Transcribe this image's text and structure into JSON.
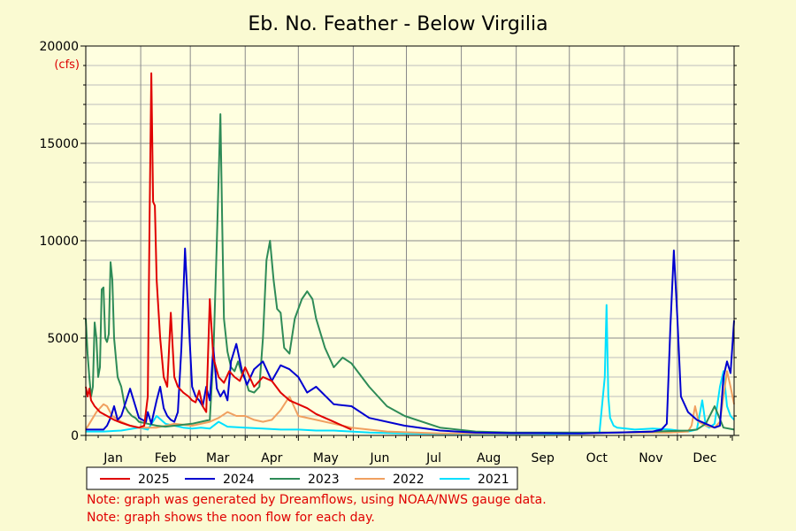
{
  "chart_data": {
    "type": "line",
    "title": "Eb. No. Feather - Below Virgilia",
    "ylabel": "(cfs)",
    "ylim": [
      0,
      20000
    ],
    "yticks": [
      0,
      5000,
      10000,
      15000,
      20000
    ],
    "xlim": [
      0,
      366
    ],
    "months": [
      "Jan",
      "Feb",
      "Mar",
      "Apr",
      "May",
      "Jun",
      "Jul",
      "Aug",
      "Sep",
      "Oct",
      "Nov",
      "Dec"
    ],
    "grid": true,
    "legend_position": "bottom",
    "series": [
      {
        "name": "2025",
        "color": "#e00000",
        "x": [
          0,
          1,
          2,
          3,
          5,
          8,
          12,
          16,
          20,
          25,
          30,
          33,
          35,
          36,
          37,
          38,
          39,
          40,
          42,
          44,
          46,
          48,
          50,
          52,
          55,
          58,
          60,
          62,
          64,
          66,
          68,
          70,
          72,
          75,
          78,
          81,
          84,
          87,
          90,
          95,
          100,
          105,
          110,
          115,
          120,
          125,
          130,
          135,
          140,
          145,
          150
        ],
        "y": [
          2500,
          2000,
          2400,
          1800,
          1500,
          1200,
          1000,
          800,
          650,
          500,
          400,
          500,
          2000,
          11000,
          18600,
          12000,
          11800,
          8000,
          5000,
          3000,
          2500,
          6300,
          3000,
          2500,
          2200,
          2000,
          1800,
          1700,
          2300,
          1500,
          1200,
          7000,
          4000,
          3000,
          2700,
          3300,
          3000,
          2800,
          3500,
          2500,
          3000,
          2800,
          2200,
          1800,
          1600,
          1400,
          1100,
          900,
          700,
          500,
          300
        ]
      },
      {
        "name": "2024",
        "color": "#0000d0",
        "x": [
          0,
          5,
          10,
          12,
          14,
          16,
          18,
          20,
          25,
          30,
          32,
          34,
          35,
          37,
          40,
          42,
          44,
          46,
          48,
          50,
          52,
          54,
          56,
          58,
          60,
          62,
          64,
          66,
          68,
          70,
          72,
          74,
          76,
          78,
          80,
          82,
          85,
          88,
          91,
          95,
          100,
          105,
          110,
          115,
          120,
          125,
          130,
          140,
          150,
          160,
          180,
          200,
          220,
          240,
          260,
          280,
          300,
          320,
          325,
          328,
          330,
          332,
          334,
          336,
          340,
          345,
          350,
          355,
          358,
          360,
          362,
          364,
          366
        ],
        "y": [
          300,
          300,
          300,
          500,
          900,
          1500,
          800,
          1000,
          2400,
          900,
          800,
          700,
          1200,
          600,
          1800,
          2500,
          1400,
          1000,
          800,
          700,
          1200,
          4500,
          9600,
          6000,
          2500,
          2000,
          1800,
          1500,
          2500,
          1800,
          4500,
          2400,
          2000,
          2300,
          1800,
          3800,
          4700,
          3400,
          2600,
          3400,
          3800,
          2800,
          3600,
          3400,
          3000,
          2200,
          2500,
          1600,
          1500,
          900,
          500,
          250,
          150,
          120,
          120,
          100,
          150,
          200,
          300,
          600,
          5500,
          9500,
          6000,
          2000,
          1200,
          800,
          600,
          400,
          500,
          3000,
          3800,
          3200,
          5900
        ]
      },
      {
        "name": "2023",
        "color": "#2e8b57",
        "x": [
          0,
          1,
          2,
          3,
          4,
          5,
          6,
          7,
          8,
          9,
          10,
          11,
          12,
          13,
          14,
          15,
          16,
          18,
          20,
          22,
          24,
          26,
          28,
          30,
          35,
          40,
          45,
          50,
          60,
          70,
          72,
          74,
          76,
          77,
          78,
          80,
          82,
          84,
          86,
          88,
          90,
          92,
          95,
          98,
          100,
          102,
          104,
          106,
          108,
          110,
          112,
          115,
          118,
          120,
          122,
          125,
          128,
          130,
          135,
          140,
          145,
          150,
          160,
          170,
          180,
          200,
          220,
          240,
          260,
          280,
          300,
          320,
          340,
          345,
          350,
          355,
          360,
          366
        ],
        "y": [
          6000,
          4200,
          3000,
          2000,
          2500,
          5800,
          5000,
          3000,
          3500,
          7500,
          7600,
          5000,
          4800,
          5200,
          8900,
          8000,
          5000,
          3000,
          2500,
          1500,
          1200,
          1000,
          900,
          700,
          600,
          500,
          450,
          500,
          600,
          800,
          4000,
          10000,
          16500,
          11000,
          6000,
          4300,
          3500,
          3300,
          3800,
          3200,
          2900,
          2300,
          2200,
          2500,
          5000,
          9000,
          10000,
          8000,
          6500,
          6300,
          4500,
          4200,
          6000,
          6500,
          7000,
          7400,
          7000,
          6000,
          4500,
          3500,
          4000,
          3700,
          2500,
          1500,
          1000,
          400,
          200,
          150,
          150,
          150,
          150,
          200,
          250,
          300,
          600,
          1500,
          400,
          300
        ]
      },
      {
        "name": "2022",
        "color": "#f0a060",
        "x": [
          0,
          2,
          4,
          6,
          8,
          10,
          12,
          15,
          20,
          25,
          30,
          40,
          50,
          60,
          70,
          75,
          80,
          85,
          90,
          95,
          100,
          105,
          110,
          115,
          120,
          130,
          140,
          150,
          170,
          200,
          250,
          300,
          330,
          340,
          342,
          344,
          346,
          350,
          355,
          358,
          360,
          362,
          364,
          366
        ],
        "y": [
          300,
          600,
          900,
          1200,
          1400,
          1600,
          1500,
          1000,
          700,
          500,
          400,
          400,
          600,
          500,
          700,
          900,
          1200,
          1000,
          1000,
          800,
          700,
          800,
          1300,
          2000,
          1000,
          800,
          600,
          400,
          200,
          100,
          100,
          150,
          150,
          200,
          500,
          1500,
          700,
          500,
          400,
          700,
          2000,
          3300,
          2500,
          1600
        ]
      },
      {
        "name": "2021",
        "color": "#00e0ff",
        "x": [
          0,
          10,
          20,
          30,
          35,
          40,
          45,
          50,
          55,
          60,
          65,
          70,
          75,
          80,
          90,
          100,
          110,
          120,
          130,
          140,
          150,
          160,
          180,
          200,
          220,
          240,
          260,
          280,
          290,
          293,
          294,
          295,
          296,
          298,
          300,
          305,
          310,
          320,
          330,
          340,
          345,
          348,
          350,
          352,
          355,
          358,
          360,
          362,
          364,
          366
        ],
        "y": [
          200,
          200,
          250,
          400,
          300,
          1000,
          600,
          500,
          400,
          350,
          400,
          350,
          700,
          450,
          400,
          350,
          300,
          300,
          250,
          250,
          200,
          150,
          100,
          80,
          80,
          80,
          80,
          100,
          150,
          3000,
          6700,
          2000,
          900,
          500,
          400,
          350,
          300,
          350,
          300,
          200,
          300,
          1800,
          500,
          400,
          600,
          2500,
          3300,
          1500,
          1000,
          800
        ]
      }
    ]
  },
  "notes": [
    "Note: graph was generated by Dreamflows, using NOAA/NWS gauge data.",
    "Note: graph shows the noon flow for each day."
  ]
}
